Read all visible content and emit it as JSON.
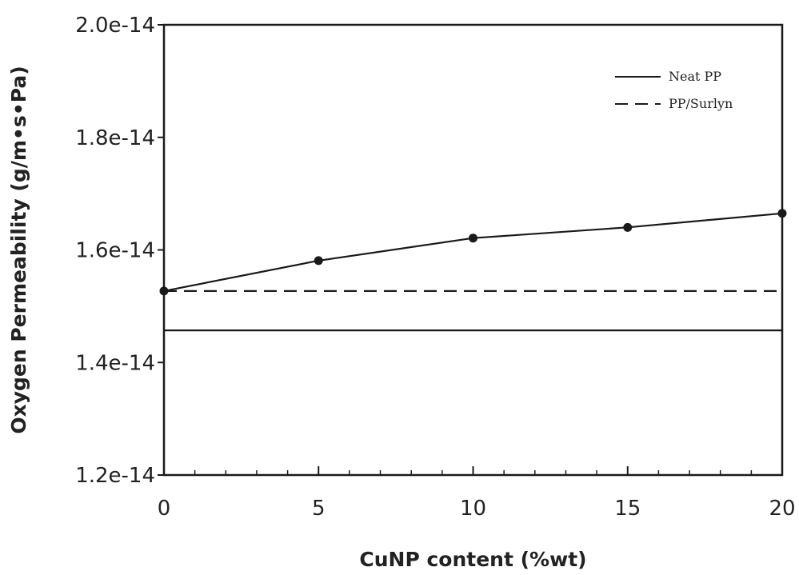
{
  "chart_data": {
    "type": "line",
    "title": "",
    "xlabel": "CuNP content (%wt)",
    "ylabel": "Oxygen Permeability (g/m•s•Pa)",
    "xlim": [
      0,
      20
    ],
    "ylim": [
      1.2e-14,
      2e-14
    ],
    "x_ticks": [
      0,
      5,
      10,
      15,
      20
    ],
    "x_tick_labels": [
      "0",
      "5",
      "10",
      "15",
      "20"
    ],
    "y_ticks": [
      1.2e-14,
      1.4e-14,
      1.6e-14,
      1.8e-14,
      2e-14
    ],
    "y_tick_labels": [
      "1.2e-14",
      "1.4e-14",
      "1.6e-14",
      "1.8e-14",
      "2.0e-14"
    ],
    "grid": false,
    "legend_position": "top-right",
    "series": [
      {
        "name": "",
        "style": "solid-markers",
        "x": [
          0,
          5,
          10,
          15,
          20
        ],
        "y": [
          1.527e-14,
          1.581e-14,
          1.621e-14,
          1.64e-14,
          1.665e-14
        ]
      },
      {
        "name": "Neat PP",
        "style": "solid",
        "x": [
          0,
          20
        ],
        "y": [
          1.457e-14,
          1.457e-14
        ]
      },
      {
        "name": "PP/Surlyn",
        "style": "dashed",
        "x": [
          0,
          20
        ],
        "y": [
          1.527e-14,
          1.527e-14
        ]
      }
    ],
    "colors": {
      "line": "#1a1a1a",
      "axis": "#1a1a1a"
    }
  }
}
